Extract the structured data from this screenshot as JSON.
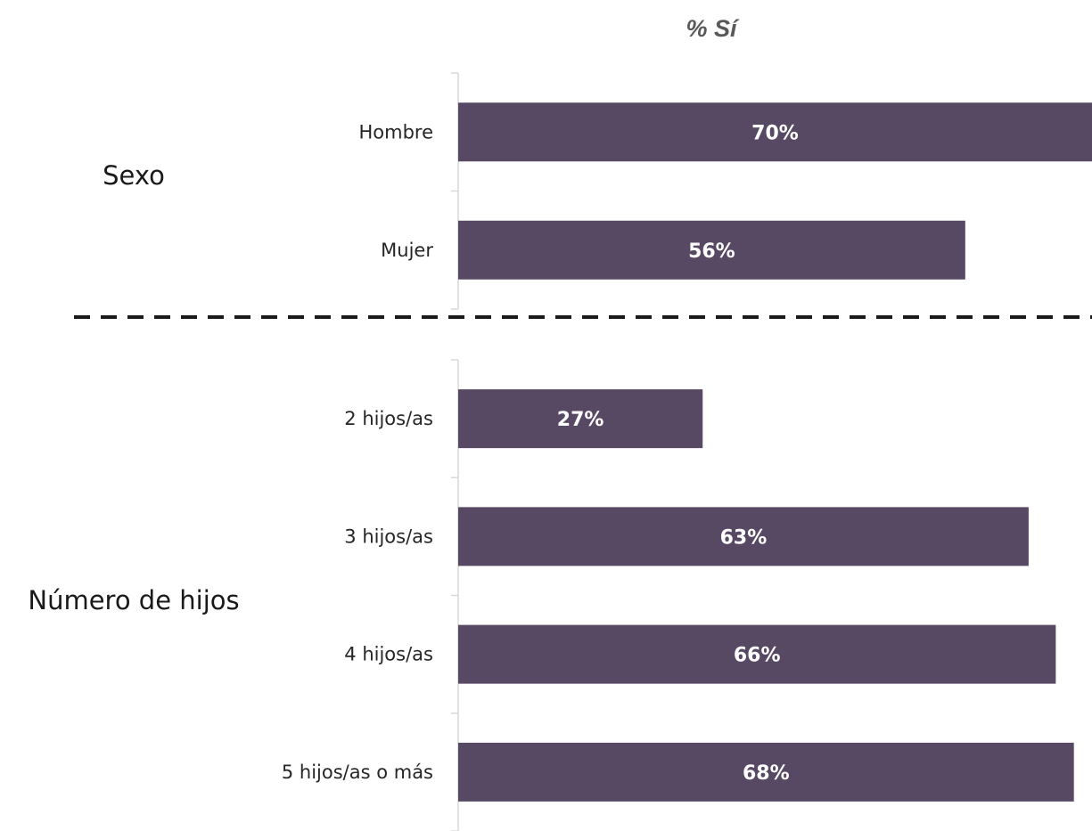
{
  "chart_data": {
    "type": "bar",
    "orientation": "horizontal",
    "title": "% Sí",
    "bar_color": "#574963",
    "label_color": "#ffffff",
    "xlim": [
      0,
      70
    ],
    "groups": [
      {
        "name": "Sexo",
        "categories": [
          "Hombre",
          "Mujer"
        ],
        "values": [
          70,
          56
        ],
        "labels": [
          "70%",
          "56%"
        ]
      },
      {
        "name": "Número de hijos",
        "categories": [
          "2 hijos/as",
          "3 hijos/as",
          "4 hijos/as",
          "5 hijos/as o más"
        ],
        "values": [
          27,
          63,
          66,
          68
        ],
        "labels": [
          "27%",
          "63%",
          "66%",
          "68%"
        ]
      }
    ]
  }
}
